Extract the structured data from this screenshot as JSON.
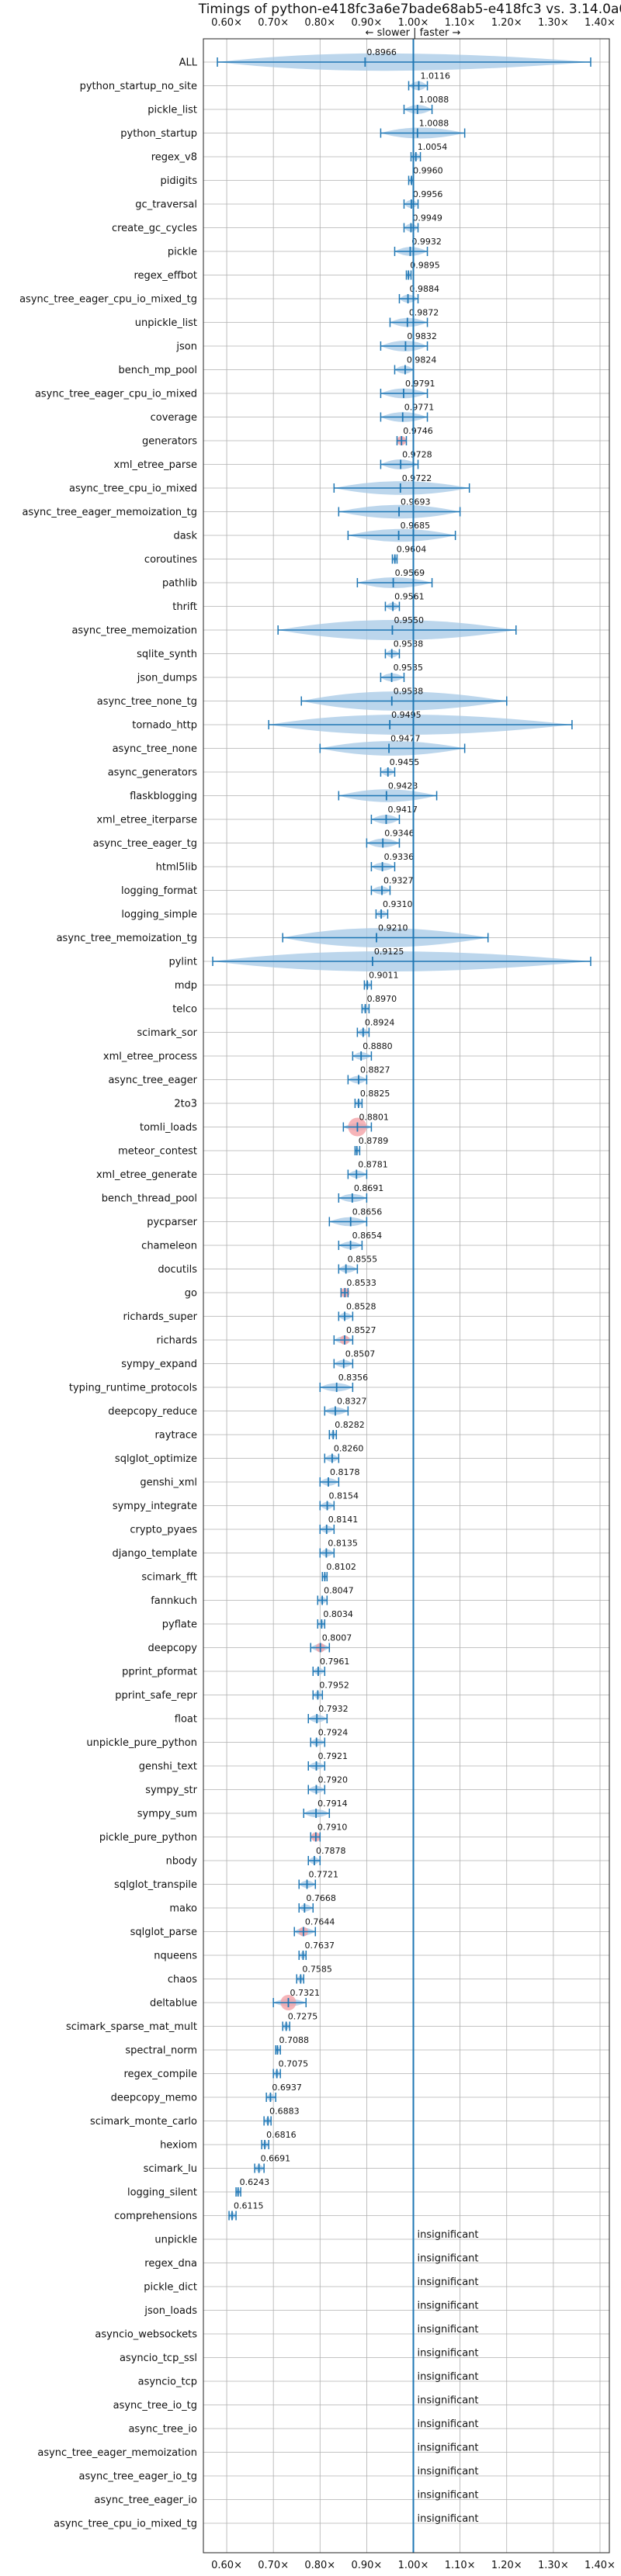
{
  "chart_data": {
    "type": "violin",
    "title": "Timings of python-e418fc3a6e7bade68ab5-e418fc3 vs. 3.14.0a0",
    "subtitle": "← slower | faster →",
    "x_ticks": [
      "0.60×",
      "0.70×",
      "0.80×",
      "0.90×",
      "1.00×",
      "1.10×",
      "1.20×",
      "1.30×",
      "1.40×"
    ],
    "xlim": [
      0.55,
      1.42
    ],
    "reference_x": 1.0,
    "grid": true,
    "insignificant_label": "insignificant",
    "colors": {
      "violin": "#a6c8e6",
      "axis_line": "#1f77b4",
      "marker": "#1f77b4",
      "highlight": "#f4a3a8",
      "grid": "#b0b0b0"
    },
    "rows": [
      {
        "name": "ALL",
        "value": 0.8966,
        "whisker": [
          0.58,
          1.38
        ],
        "spread": 0.12
      },
      {
        "name": "python_startup_no_site",
        "value": 1.0116,
        "whisker": [
          0.99,
          1.03
        ],
        "spread": 0.03
      },
      {
        "name": "pickle_list",
        "value": 1.0088,
        "whisker": [
          0.98,
          1.04
        ],
        "spread": 0.03
      },
      {
        "name": "python_startup",
        "value": 1.0088,
        "whisker": [
          0.93,
          1.11
        ],
        "spread": 0.05
      },
      {
        "name": "regex_v8",
        "value": 1.0054,
        "whisker": [
          0.995,
          1.015
        ],
        "spread": 0.01
      },
      {
        "name": "pidigits",
        "value": 0.996,
        "whisker": [
          0.99,
          1.0
        ],
        "spread": 0.005
      },
      {
        "name": "gc_traversal",
        "value": 0.9956,
        "whisker": [
          0.98,
          1.01
        ],
        "spread": 0.02
      },
      {
        "name": "create_gc_cycles",
        "value": 0.9949,
        "whisker": [
          0.98,
          1.01
        ],
        "spread": 0.02
      },
      {
        "name": "pickle",
        "value": 0.9932,
        "whisker": [
          0.96,
          1.03
        ],
        "spread": 0.03
      },
      {
        "name": "regex_effbot",
        "value": 0.9895,
        "whisker": [
          0.985,
          0.995
        ],
        "spread": 0.005
      },
      {
        "name": "async_tree_eager_cpu_io_mixed_tg",
        "value": 0.9884,
        "whisker": [
          0.97,
          1.01
        ],
        "spread": 0.02
      },
      {
        "name": "unpickle_list",
        "value": 0.9872,
        "whisker": [
          0.95,
          1.03
        ],
        "spread": 0.03
      },
      {
        "name": "json",
        "value": 0.9832,
        "whisker": [
          0.93,
          1.03
        ],
        "spread": 0.05
      },
      {
        "name": "bench_mp_pool",
        "value": 0.9824,
        "whisker": [
          0.96,
          1.0
        ],
        "spread": 0.02
      },
      {
        "name": "async_tree_eager_cpu_io_mixed",
        "value": 0.9791,
        "whisker": [
          0.93,
          1.03
        ],
        "spread": 0.04
      },
      {
        "name": "coverage",
        "value": 0.9771,
        "whisker": [
          0.93,
          1.03
        ],
        "spread": 0.04
      },
      {
        "name": "generators",
        "value": 0.9746,
        "whisker": [
          0.965,
          0.985
        ],
        "spread": 0.01,
        "highlight": true
      },
      {
        "name": "xml_etree_parse",
        "value": 0.9728,
        "whisker": [
          0.93,
          1.01
        ],
        "spread": 0.04
      },
      {
        "name": "async_tree_cpu_io_mixed",
        "value": 0.9722,
        "whisker": [
          0.83,
          1.12
        ],
        "spread": 0.08
      },
      {
        "name": "async_tree_eager_memoization_tg",
        "value": 0.9693,
        "whisker": [
          0.84,
          1.1
        ],
        "spread": 0.08
      },
      {
        "name": "dask",
        "value": 0.9685,
        "whisker": [
          0.86,
          1.09
        ],
        "spread": 0.07
      },
      {
        "name": "coroutines",
        "value": 0.9604,
        "whisker": [
          0.955,
          0.965
        ],
        "spread": 0.005
      },
      {
        "name": "pathlib",
        "value": 0.9569,
        "whisker": [
          0.88,
          1.04
        ],
        "spread": 0.05
      },
      {
        "name": "thrift",
        "value": 0.9561,
        "whisker": [
          0.94,
          0.97
        ],
        "spread": 0.015
      },
      {
        "name": "async_tree_memoization",
        "value": 0.955,
        "whisker": [
          0.71,
          1.22
        ],
        "spread": 0.15
      },
      {
        "name": "sqlite_synth",
        "value": 0.9538,
        "whisker": [
          0.94,
          0.97
        ],
        "spread": 0.015
      },
      {
        "name": "json_dumps",
        "value": 0.9535,
        "whisker": [
          0.93,
          0.98
        ],
        "spread": 0.02
      },
      {
        "name": "async_tree_none_tg",
        "value": 0.9538,
        "whisker": [
          0.76,
          1.2
        ],
        "spread": 0.14
      },
      {
        "name": "tornado_http",
        "value": 0.9495,
        "whisker": [
          0.69,
          1.34
        ],
        "spread": 0.16
      },
      {
        "name": "async_tree_none",
        "value": 0.9477,
        "whisker": [
          0.8,
          1.11
        ],
        "spread": 0.09
      },
      {
        "name": "async_generators",
        "value": 0.9455,
        "whisker": [
          0.93,
          0.96
        ],
        "spread": 0.015
      },
      {
        "name": "flaskblogging",
        "value": 0.9423,
        "whisker": [
          0.84,
          1.05
        ],
        "spread": 0.07
      },
      {
        "name": "xml_etree_iterparse",
        "value": 0.9417,
        "whisker": [
          0.91,
          0.97
        ],
        "spread": 0.03
      },
      {
        "name": "async_tree_eager_tg",
        "value": 0.9346,
        "whisker": [
          0.9,
          0.97
        ],
        "spread": 0.03
      },
      {
        "name": "html5lib",
        "value": 0.9336,
        "whisker": [
          0.91,
          0.96
        ],
        "spread": 0.02
      },
      {
        "name": "logging_format",
        "value": 0.9327,
        "whisker": [
          0.91,
          0.95
        ],
        "spread": 0.02
      },
      {
        "name": "logging_simple",
        "value": 0.931,
        "whisker": [
          0.92,
          0.945
        ],
        "spread": 0.012
      },
      {
        "name": "async_tree_memoization_tg",
        "value": 0.921,
        "whisker": [
          0.72,
          1.16
        ],
        "spread": 0.14
      },
      {
        "name": "pylint",
        "value": 0.9125,
        "whisker": [
          0.57,
          1.38
        ],
        "spread": 0.2
      },
      {
        "name": "mdp",
        "value": 0.9011,
        "whisker": [
          0.895,
          0.91
        ],
        "spread": 0.008
      },
      {
        "name": "telco",
        "value": 0.897,
        "whisker": [
          0.89,
          0.905
        ],
        "spread": 0.008
      },
      {
        "name": "scimark_sor",
        "value": 0.8924,
        "whisker": [
          0.88,
          0.905
        ],
        "spread": 0.01
      },
      {
        "name": "xml_etree_process",
        "value": 0.888,
        "whisker": [
          0.87,
          0.91
        ],
        "spread": 0.015
      },
      {
        "name": "async_tree_eager",
        "value": 0.8827,
        "whisker": [
          0.86,
          0.9
        ],
        "spread": 0.015
      },
      {
        "name": "2to3",
        "value": 0.8825,
        "whisker": [
          0.875,
          0.89
        ],
        "spread": 0.008
      },
      {
        "name": "tomli_loads",
        "value": 0.8801,
        "whisker": [
          0.85,
          0.91
        ],
        "spread": 0.015,
        "highlight": true,
        "highlight_r": 12
      },
      {
        "name": "meteor_contest",
        "value": 0.8789,
        "whisker": [
          0.875,
          0.885
        ],
        "spread": 0.005
      },
      {
        "name": "xml_etree_generate",
        "value": 0.8781,
        "whisker": [
          0.86,
          0.9
        ],
        "spread": 0.015
      },
      {
        "name": "bench_thread_pool",
        "value": 0.8691,
        "whisker": [
          0.84,
          0.9
        ],
        "spread": 0.02
      },
      {
        "name": "pycparser",
        "value": 0.8656,
        "whisker": [
          0.82,
          0.9
        ],
        "spread": 0.03
      },
      {
        "name": "chameleon",
        "value": 0.8654,
        "whisker": [
          0.84,
          0.89
        ],
        "spread": 0.015
      },
      {
        "name": "docutils",
        "value": 0.8555,
        "whisker": [
          0.84,
          0.88
        ],
        "spread": 0.015
      },
      {
        "name": "go",
        "value": 0.8533,
        "whisker": [
          0.845,
          0.86
        ],
        "spread": 0.008,
        "highlight": true
      },
      {
        "name": "richards_super",
        "value": 0.8528,
        "whisker": [
          0.84,
          0.87
        ],
        "spread": 0.01
      },
      {
        "name": "richards",
        "value": 0.8527,
        "whisker": [
          0.83,
          0.87
        ],
        "spread": 0.012,
        "highlight": true
      },
      {
        "name": "sympy_expand",
        "value": 0.8507,
        "whisker": [
          0.83,
          0.87
        ],
        "spread": 0.015
      },
      {
        "name": "typing_runtime_protocols",
        "value": 0.8356,
        "whisker": [
          0.8,
          0.87
        ],
        "spread": 0.025
      },
      {
        "name": "deepcopy_reduce",
        "value": 0.8327,
        "whisker": [
          0.81,
          0.86
        ],
        "spread": 0.015
      },
      {
        "name": "raytrace",
        "value": 0.8282,
        "whisker": [
          0.82,
          0.835
        ],
        "spread": 0.008
      },
      {
        "name": "sqlglot_optimize",
        "value": 0.826,
        "whisker": [
          0.81,
          0.84
        ],
        "spread": 0.012
      },
      {
        "name": "genshi_xml",
        "value": 0.8178,
        "whisker": [
          0.8,
          0.84
        ],
        "spread": 0.015
      },
      {
        "name": "sympy_integrate",
        "value": 0.8154,
        "whisker": [
          0.8,
          0.83
        ],
        "spread": 0.012
      },
      {
        "name": "crypto_pyaes",
        "value": 0.8141,
        "whisker": [
          0.8,
          0.83
        ],
        "spread": 0.01
      },
      {
        "name": "django_template",
        "value": 0.8135,
        "whisker": [
          0.8,
          0.83
        ],
        "spread": 0.012
      },
      {
        "name": "scimark_fft",
        "value": 0.8102,
        "whisker": [
          0.805,
          0.815
        ],
        "spread": 0.005
      },
      {
        "name": "fannkuch",
        "value": 0.8047,
        "whisker": [
          0.795,
          0.815
        ],
        "spread": 0.008
      },
      {
        "name": "pyflate",
        "value": 0.8034,
        "whisker": [
          0.795,
          0.81
        ],
        "spread": 0.008
      },
      {
        "name": "deepcopy",
        "value": 0.8007,
        "whisker": [
          0.78,
          0.82
        ],
        "spread": 0.012,
        "highlight": true
      },
      {
        "name": "pprint_pformat",
        "value": 0.7961,
        "whisker": [
          0.785,
          0.81
        ],
        "spread": 0.01
      },
      {
        "name": "pprint_safe_repr",
        "value": 0.7952,
        "whisker": [
          0.785,
          0.805
        ],
        "spread": 0.008
      },
      {
        "name": "float",
        "value": 0.7932,
        "whisker": [
          0.775,
          0.815
        ],
        "spread": 0.015
      },
      {
        "name": "unpickle_pure_python",
        "value": 0.7924,
        "whisker": [
          0.78,
          0.81
        ],
        "spread": 0.01
      },
      {
        "name": "genshi_text",
        "value": 0.7921,
        "whisker": [
          0.775,
          0.81
        ],
        "spread": 0.012
      },
      {
        "name": "sympy_str",
        "value": 0.792,
        "whisker": [
          0.775,
          0.81
        ],
        "spread": 0.012
      },
      {
        "name": "sympy_sum",
        "value": 0.7914,
        "whisker": [
          0.765,
          0.82
        ],
        "spread": 0.02
      },
      {
        "name": "pickle_pure_python",
        "value": 0.791,
        "whisker": [
          0.78,
          0.8
        ],
        "spread": 0.008,
        "highlight": true
      },
      {
        "name": "nbody",
        "value": 0.7878,
        "whisker": [
          0.775,
          0.8
        ],
        "spread": 0.01
      },
      {
        "name": "sqlglot_transpile",
        "value": 0.7721,
        "whisker": [
          0.755,
          0.79
        ],
        "spread": 0.012
      },
      {
        "name": "mako",
        "value": 0.7668,
        "whisker": [
          0.755,
          0.785
        ],
        "spread": 0.01
      },
      {
        "name": "sqlglot_parse",
        "value": 0.7644,
        "whisker": [
          0.745,
          0.79
        ],
        "spread": 0.015,
        "highlight": true
      },
      {
        "name": "nqueens",
        "value": 0.7637,
        "whisker": [
          0.755,
          0.77
        ],
        "spread": 0.006
      },
      {
        "name": "chaos",
        "value": 0.7585,
        "whisker": [
          0.75,
          0.765
        ],
        "spread": 0.006
      },
      {
        "name": "deltablue",
        "value": 0.7321,
        "whisker": [
          0.7,
          0.77
        ],
        "spread": 0.015,
        "highlight": true,
        "highlight_r": 10
      },
      {
        "name": "scimark_sparse_mat_mult",
        "value": 0.7275,
        "whisker": [
          0.72,
          0.735
        ],
        "spread": 0.006
      },
      {
        "name": "spectral_norm",
        "value": 0.7088,
        "whisker": [
          0.705,
          0.715
        ],
        "spread": 0.005
      },
      {
        "name": "regex_compile",
        "value": 0.7075,
        "whisker": [
          0.7,
          0.715
        ],
        "spread": 0.005
      },
      {
        "name": "deepcopy_memo",
        "value": 0.6937,
        "whisker": [
          0.685,
          0.705
        ],
        "spread": 0.008
      },
      {
        "name": "scimark_monte_carlo",
        "value": 0.6883,
        "whisker": [
          0.68,
          0.695
        ],
        "spread": 0.006
      },
      {
        "name": "hexiom",
        "value": 0.6816,
        "whisker": [
          0.675,
          0.69
        ],
        "spread": 0.005
      },
      {
        "name": "scimark_lu",
        "value": 0.6691,
        "whisker": [
          0.66,
          0.68
        ],
        "spread": 0.006
      },
      {
        "name": "logging_silent",
        "value": 0.6243,
        "whisker": [
          0.62,
          0.63
        ],
        "spread": 0.005
      },
      {
        "name": "comprehensions",
        "value": 0.6115,
        "whisker": [
          0.605,
          0.62
        ],
        "spread": 0.006
      },
      {
        "name": "unpickle",
        "insignificant": true
      },
      {
        "name": "regex_dna",
        "insignificant": true
      },
      {
        "name": "pickle_dict",
        "insignificant": true
      },
      {
        "name": "json_loads",
        "insignificant": true
      },
      {
        "name": "asyncio_websockets",
        "insignificant": true
      },
      {
        "name": "asyncio_tcp_ssl",
        "insignificant": true
      },
      {
        "name": "asyncio_tcp",
        "insignificant": true
      },
      {
        "name": "async_tree_io_tg",
        "insignificant": true
      },
      {
        "name": "async_tree_io",
        "insignificant": true
      },
      {
        "name": "async_tree_eager_memoization",
        "insignificant": true
      },
      {
        "name": "async_tree_eager_io_tg",
        "insignificant": true
      },
      {
        "name": "async_tree_eager_io",
        "insignificant": true
      },
      {
        "name": "async_tree_cpu_io_mixed_tg",
        "insignificant": true
      }
    ]
  }
}
